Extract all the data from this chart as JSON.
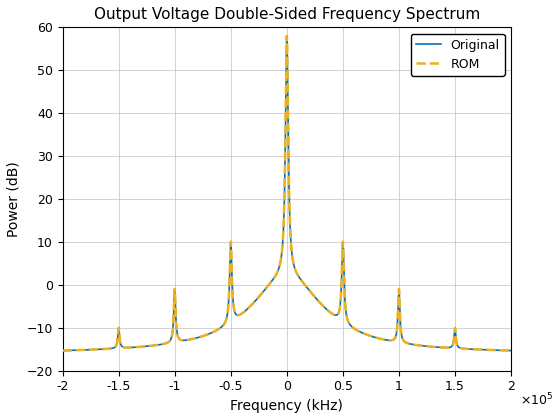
{
  "title": "Output Voltage Double-Sided Frequency Spectrum",
  "xlabel": "Frequency (kHz)",
  "ylabel": "Power (dB)",
  "xlim": [
    -200000,
    200000
  ],
  "ylim": [
    -20,
    60
  ],
  "xticks": [
    -200000,
    -150000,
    -100000,
    -50000,
    0,
    50000,
    100000,
    150000,
    200000
  ],
  "yticks": [
    -20,
    -10,
    0,
    10,
    20,
    30,
    40,
    50,
    60
  ],
  "original_color": "#0072BD",
  "rom_color": "#EDB120",
  "legend_labels": [
    "Original",
    "ROM"
  ],
  "fs": 200000,
  "background_color": "#ffffff",
  "grid_color": "#c0c0c0"
}
